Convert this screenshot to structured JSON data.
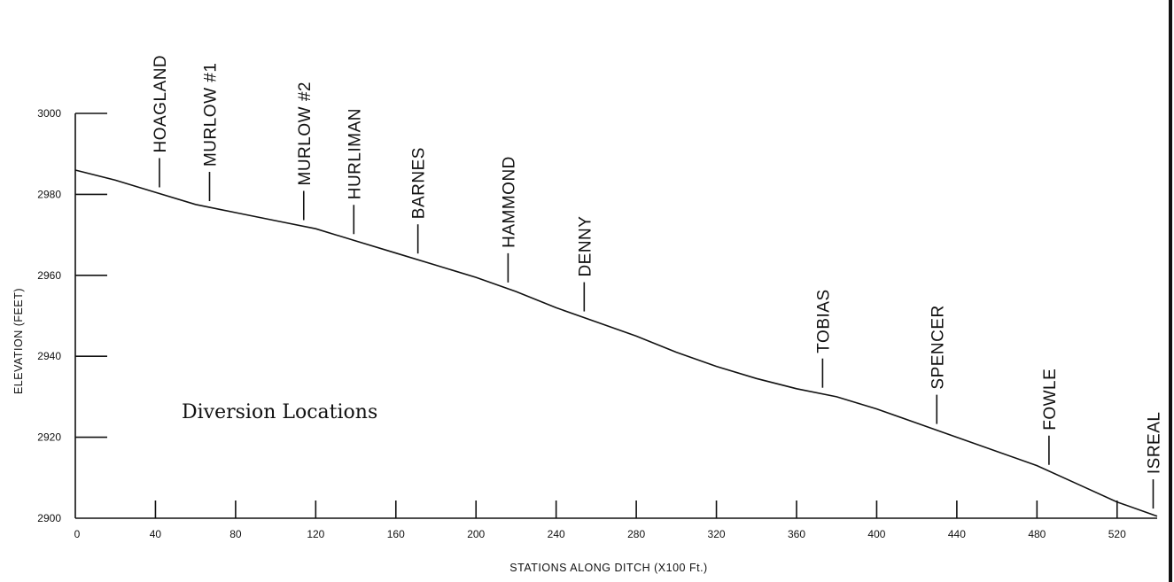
{
  "chart_data": {
    "type": "line",
    "title": "",
    "annotation": "Diversion Locations",
    "xlabel": "STATIONS ALONG DITCH  (X100 Ft.)",
    "ylabel": "ELEVATION  (FEET)",
    "xlim": [
      0,
      540
    ],
    "ylim": [
      2900,
      3000
    ],
    "x_ticks": [
      0,
      40,
      80,
      120,
      160,
      200,
      240,
      280,
      320,
      360,
      400,
      440,
      480,
      520
    ],
    "y_ticks": [
      2900,
      2920,
      2940,
      2960,
      2980,
      3000
    ],
    "grid": false,
    "series": [
      {
        "x": [
          0,
          20,
          40,
          60,
          80,
          100,
          120,
          140,
          160,
          180,
          200,
          220,
          240,
          260,
          280,
          300,
          320,
          340,
          360,
          380,
          400,
          420,
          440,
          460,
          480,
          500,
          520,
          540
        ],
        "y": [
          2986,
          2983.5,
          2980.5,
          2977.5,
          2975.5,
          2973.5,
          2971.5,
          2968.5,
          2965.5,
          2962.5,
          2959.5,
          2956,
          2952,
          2948.5,
          2945,
          2941,
          2937.5,
          2934.5,
          2932,
          2930,
          2927,
          2923.5,
          2920,
          2916.5,
          2913,
          2908.5,
          2904,
          2900.5
        ]
      }
    ],
    "diversions": [
      {
        "name": "HOAGLAND",
        "x": 42
      },
      {
        "name": "MURLOW #1",
        "x": 67
      },
      {
        "name": "MURLOW #2",
        "x": 114
      },
      {
        "name": "HURLIMAN",
        "x": 139
      },
      {
        "name": "BARNES",
        "x": 171
      },
      {
        "name": "HAMMOND",
        "x": 216
      },
      {
        "name": "DENNY",
        "x": 254
      },
      {
        "name": "TOBIAS",
        "x": 373
      },
      {
        "name": "SPENCER",
        "x": 430
      },
      {
        "name": "FOWLE",
        "x": 486
      },
      {
        "name": "ISREAL",
        "x": 538
      }
    ]
  }
}
